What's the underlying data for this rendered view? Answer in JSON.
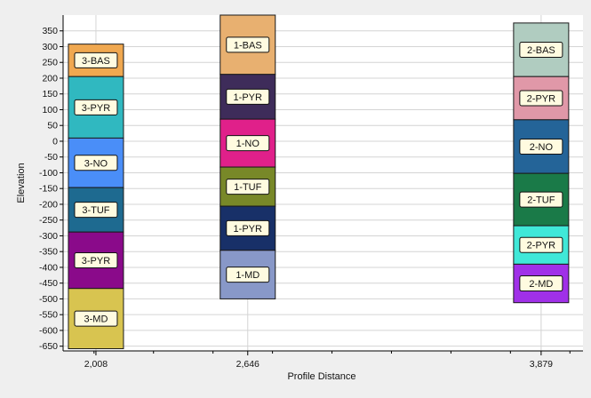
{
  "chart_data": {
    "type": "bar",
    "title": "",
    "xlabel": "Profile Distance",
    "ylabel": "Elevation",
    "ylim": [
      -665,
      400
    ],
    "y_ticks": [
      350,
      300,
      250,
      200,
      150,
      100,
      50,
      0,
      -50,
      -100,
      -150,
      -200,
      -250,
      -300,
      -350,
      -400,
      -450,
      -500,
      -550,
      -600,
      -650
    ],
    "x_ticks": [
      "2,008",
      "2,646",
      "3,879"
    ],
    "xlim": [
      1870,
      4055
    ],
    "grid": true,
    "columns": [
      {
        "x": 2008,
        "label": "2,008",
        "units": [
          {
            "name": "3-BAS",
            "top": 308,
            "bottom": 205,
            "color": "#f0a850"
          },
          {
            "name": "3-PYR",
            "top": 205,
            "bottom": 10,
            "color": "#30b8c0"
          },
          {
            "name": "3-NO",
            "top": 10,
            "bottom": -147,
            "color": "#4a8ef8"
          },
          {
            "name": "3-TUF",
            "top": -147,
            "bottom": -288,
            "color": "#1e6a90"
          },
          {
            "name": "3-PYR",
            "top": -288,
            "bottom": -467,
            "color": "#8a0a8a"
          },
          {
            "name": "3-MD",
            "top": -467,
            "bottom": -658,
            "color": "#d8c450"
          }
        ]
      },
      {
        "x": 2646,
        "label": "2,646",
        "units": [
          {
            "name": "1-BAS",
            "top": 400,
            "bottom": 212,
            "color": "#e8b070"
          },
          {
            "name": "1-PYR",
            "top": 212,
            "bottom": 70,
            "color": "#3e2c5a"
          },
          {
            "name": "1-NO",
            "top": 70,
            "bottom": -82,
            "color": "#e0208a"
          },
          {
            "name": "1-TUF",
            "top": -82,
            "bottom": -206,
            "color": "#788828"
          },
          {
            "name": "1-PYR",
            "top": -206,
            "bottom": -346,
            "color": "#183068"
          },
          {
            "name": "1-MD",
            "top": -346,
            "bottom": -500,
            "color": "#8898c8"
          }
        ]
      },
      {
        "x": 3879,
        "label": "3,879",
        "units": [
          {
            "name": "2-BAS",
            "top": 375,
            "bottom": 205,
            "color": "#b0ccc0"
          },
          {
            "name": "2-PYR",
            "top": 205,
            "bottom": 68,
            "color": "#e098a8"
          },
          {
            "name": "2-NO",
            "top": 68,
            "bottom": -102,
            "color": "#246498"
          },
          {
            "name": "2-TUF",
            "top": -102,
            "bottom": -268,
            "color": "#1a7a48"
          },
          {
            "name": "2-PYR",
            "top": -268,
            "bottom": -390,
            "color": "#40e8d8"
          },
          {
            "name": "2-MD",
            "top": -390,
            "bottom": -512,
            "color": "#a030e8"
          }
        ]
      }
    ]
  }
}
